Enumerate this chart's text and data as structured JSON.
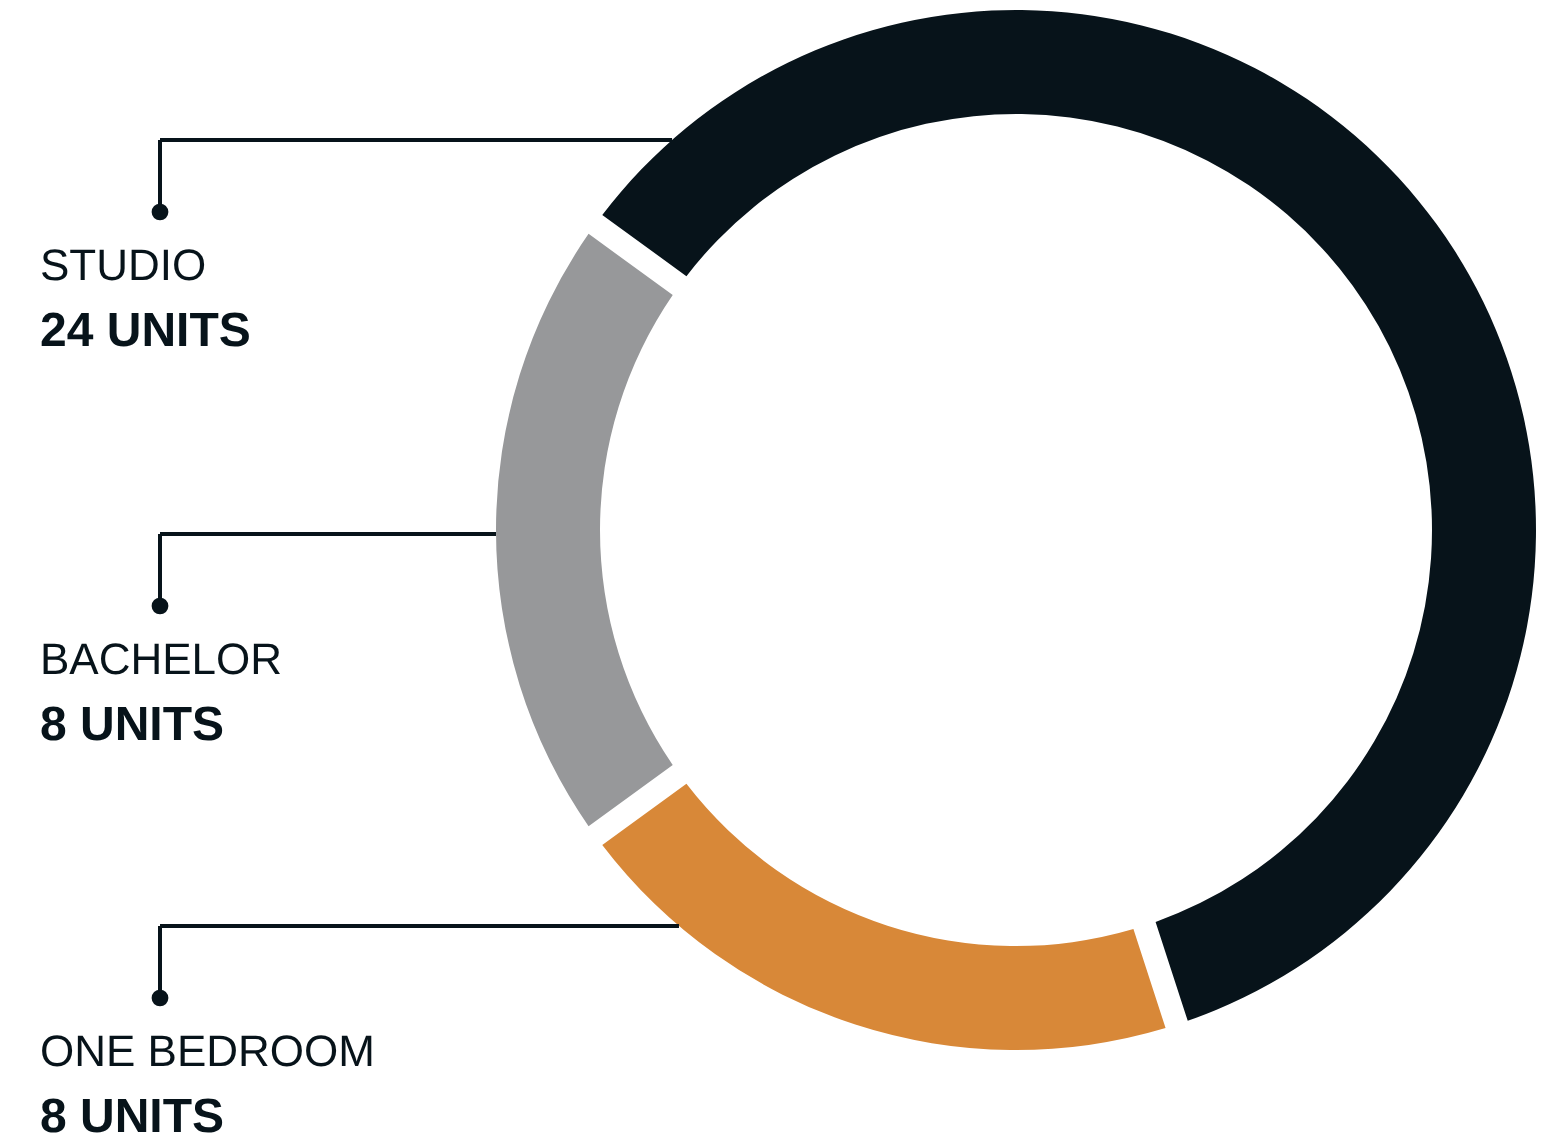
{
  "chart_data": {
    "type": "donut",
    "categories": [
      "STUDIO",
      "BACHELOR",
      "ONE BEDROOM"
    ],
    "values": [
      24,
      8,
      8
    ],
    "colors": [
      "#07131a",
      "#97989a",
      "#d88838"
    ],
    "value_labels": [
      "24 UNITS",
      "8 UNITS",
      "8 UNITS"
    ]
  }
}
